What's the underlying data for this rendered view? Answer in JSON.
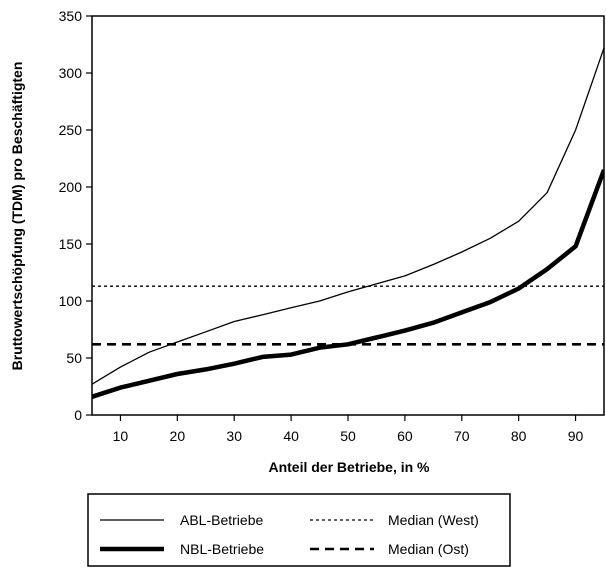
{
  "chart_data": {
    "type": "line",
    "xlabel": "Anteil der Betriebe, in %",
    "ylabel": "Bruttowertschöpfung (TDM) pro Beschäftigten",
    "xlim": [
      5,
      95
    ],
    "ylim": [
      0,
      350
    ],
    "xticks": [
      10,
      20,
      30,
      40,
      50,
      60,
      70,
      80,
      90
    ],
    "yticks": [
      0,
      50,
      100,
      150,
      200,
      250,
      300,
      350
    ],
    "grid": false,
    "legend_position": "bottom",
    "series": [
      {
        "name": "ABL-Betriebe",
        "style": "solid-thin",
        "x": [
          5,
          10,
          15,
          20,
          25,
          30,
          35,
          40,
          45,
          50,
          55,
          60,
          65,
          70,
          75,
          80,
          85,
          90,
          95
        ],
        "values": [
          27,
          42,
          55,
          64,
          73,
          82,
          88,
          94,
          100,
          108,
          115,
          122,
          132,
          143,
          155,
          170,
          195,
          250,
          322
        ]
      },
      {
        "name": "NBL-Betriebe",
        "style": "solid-thick",
        "x": [
          5,
          10,
          15,
          20,
          25,
          30,
          35,
          40,
          45,
          50,
          55,
          60,
          65,
          70,
          75,
          80,
          85,
          90,
          95
        ],
        "values": [
          16,
          24,
          30,
          36,
          40,
          45,
          51,
          53,
          59,
          62,
          68,
          74,
          81,
          90,
          99,
          111,
          128,
          148,
          215
        ]
      },
      {
        "name": "Median (West)",
        "style": "dotted",
        "constant": 113
      },
      {
        "name": "Median (Ost)",
        "style": "dashed",
        "constant": 62
      }
    ]
  }
}
